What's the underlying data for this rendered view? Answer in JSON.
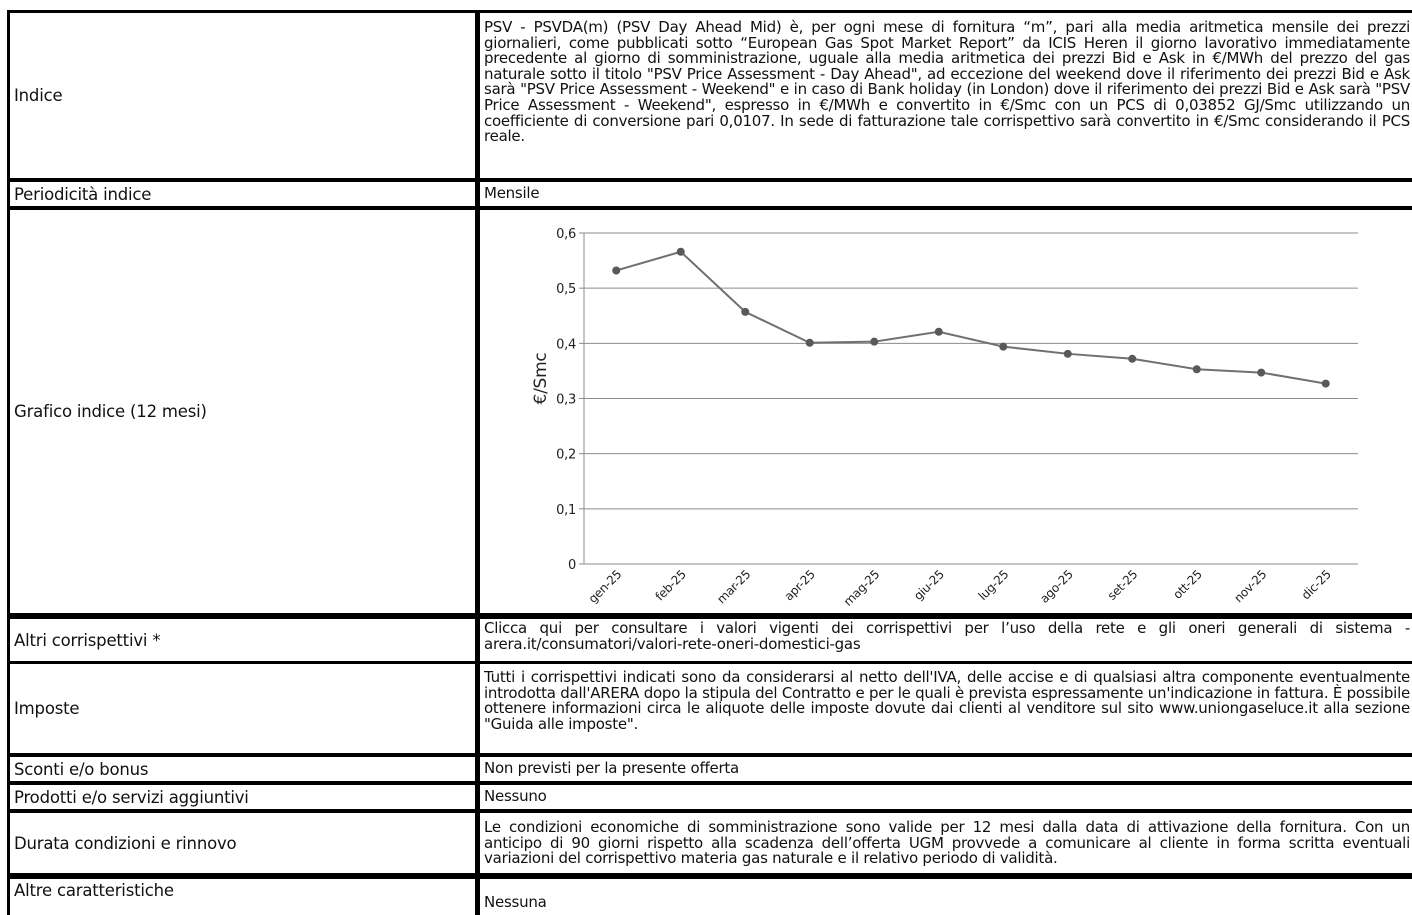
{
  "rows": {
    "indice": {
      "label": "Indice",
      "value": "PSV - PSVDA(m) (PSV Day Ahead Mid) è, per ogni mese di fornitura “m”, pari alla media aritmetica mensile dei prezzi giornalieri, come pubblicati sotto “European Gas Spot Market Report” da ICIS Heren il giorno lavorativo immediatamente precedente al giorno di somministrazione, uguale alla media aritmetica dei prezzi Bid e Ask in €/MWh del prezzo del gas naturale sotto il titolo \"PSV Price Assessment - Day Ahead\", ad eccezione del weekend dove il riferimento dei prezzi Bid e Ask sarà \"PSV Price Assessment - Weekend\" e in caso di Bank holiday (in London) dove il riferimento dei prezzi Bid e Ask sarà \"PSV Price Assessment - Weekend\", espresso in €/MWh e convertito in €/Smc con un PCS di 0,03852 GJ/Smc utilizzando un coefficiente di conversione pari 0,0107. In sede di fatturazione tale corrispettivo sarà convertito in €/Smc considerando il PCS reale."
    },
    "periodicita": {
      "label": "Periodicità indice",
      "value": "Mensile"
    },
    "grafico": {
      "label": "Grafico indice (12 mesi)"
    },
    "altri": {
      "label": "Altri corrispettivi *",
      "value": "Clicca qui per consultare i valori vigenti dei corrispettivi per l’uso della rete e gli oneri generali di sistema - arera.it/consumatori/valori-rete-oneri-domestici-gas"
    },
    "imposte": {
      "label": "Imposte",
      "value": "Tutti i corrispettivi indicati sono da considerarsi al netto dell'IVA, delle accise e di qualsiasi altra componente eventualmente introdotta dall'ARERA dopo la stipula del Contratto e per le quali è prevista espressamente un'indicazione in fattura. È possibile ottenere informazioni circa le aliquote delle imposte dovute dai clienti al venditore sul sito www.uniongaseluce.it alla sezione \"Guida alle imposte\"."
    },
    "sconti": {
      "label": "Sconti e/o bonus",
      "value": "Non previsti per la presente offerta"
    },
    "prodotti": {
      "label": "Prodotti e/o servizi aggiuntivi",
      "value": "Nessuno"
    },
    "durata": {
      "label": "Durata condizioni e rinnovo",
      "value": "Le condizioni economiche di somministrazione sono valide per 12 mesi dalla data di attivazione della fornitura. Con un anticipo di 90 giorni rispetto alla scadenza dell’offerta UGM provvede a comunicare al cliente in forma scritta eventuali variazioni del corrispettivo materia gas naturale e il relativo periodo di validità."
    },
    "altre": {
      "label": "Altre caratteristiche",
      "value": "Nessuna"
    }
  },
  "chart_data": {
    "type": "line",
    "title": "",
    "xlabel": "",
    "ylabel": "€/Smc",
    "categories": [
      "gen-25",
      "feb-25",
      "mar-25",
      "apr-25",
      "mag-25",
      "giu-25",
      "lug-25",
      "ago-25",
      "set-25",
      "ott-25",
      "nov-25",
      "dic-25"
    ],
    "values": [
      0.532,
      0.566,
      0.457,
      0.401,
      0.403,
      0.421,
      0.394,
      0.381,
      0.372,
      0.353,
      0.347,
      0.327
    ],
    "ylim": [
      0,
      0.6
    ],
    "yticks": [
      "0",
      "0,1",
      "0,2",
      "0,3",
      "0,4",
      "0,5",
      "0,6"
    ],
    "grid": true,
    "legend": "none",
    "line_color": "#707070",
    "marker_color": "#595959"
  }
}
